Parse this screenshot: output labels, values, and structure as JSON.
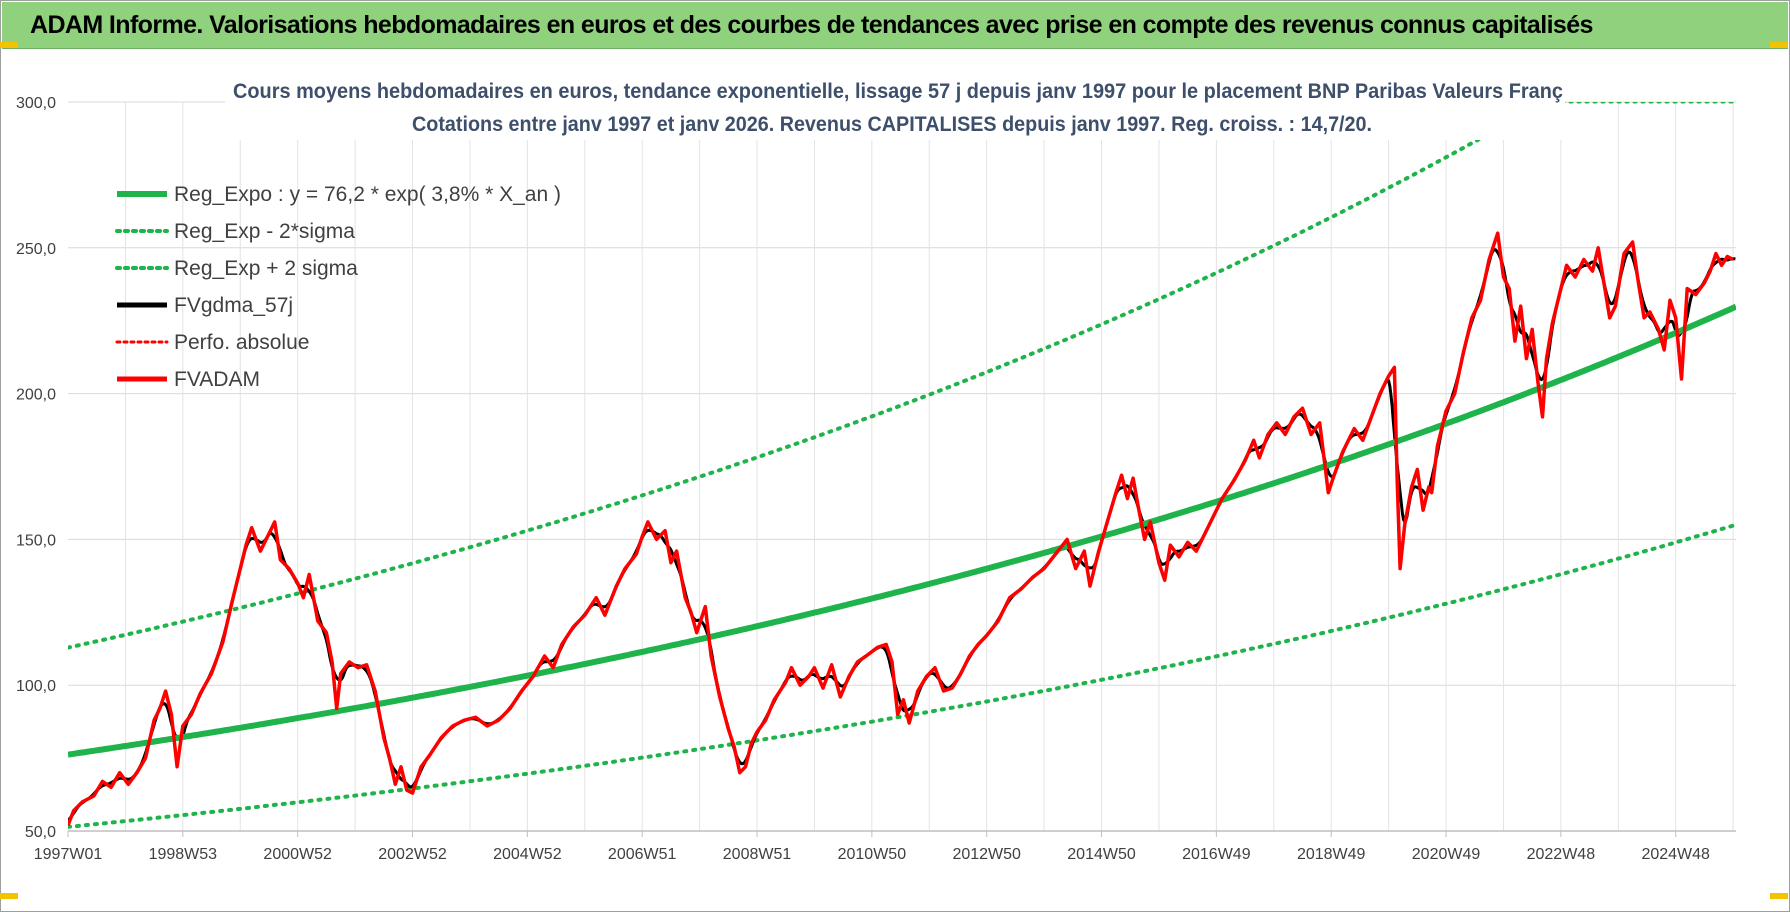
{
  "banner": {
    "title": "ADAM Informe. Valorisations hebdomadaires en euros et des courbes de tendances avec prise en compte des revenus connus capitalisés"
  },
  "colors": {
    "banner": "#8fd17c",
    "trend": "#1fb34b",
    "smoothed": "#000000",
    "price": "#ff0000",
    "grid": "#d9d9d9",
    "title": "#3d4f6b"
  },
  "chart_data": {
    "type": "line",
    "title_lines": [
      "Cours moyens hebdomadaires en euros, tendance exponentielle, lissage 57 j depuis janv 1997  pour le placement BNP Paribas Valeurs Franç",
      "Cotations entre janv 1997 et janv 2026. Revenus CAPITALISES depuis janv 1997. Reg. croiss. : 14,7/20."
    ],
    "xlabel": "",
    "ylabel": "",
    "x_range": [
      1997.0,
      2026.05
    ],
    "ylim": [
      50,
      300
    ],
    "y_ticks": [
      "50,0",
      "100,0",
      "150,0",
      "200,0",
      "250,0",
      "300,0"
    ],
    "x_ticks": [
      {
        "label": "1997W01",
        "x": 1997.0
      },
      {
        "label": "1998W53",
        "x": 1999.0
      },
      {
        "label": "2000W52",
        "x": 2001.0
      },
      {
        "label": "2002W52",
        "x": 2003.0
      },
      {
        "label": "2004W52",
        "x": 2005.0
      },
      {
        "label": "2006W51",
        "x": 2007.0
      },
      {
        "label": "2008W51",
        "x": 2009.0
      },
      {
        "label": "2010W50",
        "x": 2011.0
      },
      {
        "label": "2012W50",
        "x": 2013.0
      },
      {
        "label": "2014W50",
        "x": 2015.0
      },
      {
        "label": "2016W49",
        "x": 2017.0
      },
      {
        "label": "2018W49",
        "x": 2019.0
      },
      {
        "label": "2020W49",
        "x": 2021.0
      },
      {
        "label": "2022W48",
        "x": 2023.0
      },
      {
        "label": "2024W48",
        "x": 2025.0
      }
    ],
    "grid": true,
    "legend_position": "top-left",
    "series": [
      {
        "name": "Reg_Expo : y = 76,2 * exp( 3,8% *  X_an )",
        "style": "solid",
        "color": "#1fb34b",
        "formula": {
          "a": 76.2,
          "rate": 0.038,
          "start": 1997.0
        }
      },
      {
        "name": "Reg_Exp - 2*sigma",
        "style": "dotted",
        "color": "#1fb34b",
        "formula": {
          "a": 51.4,
          "rate": 0.038,
          "start": 1997.0
        }
      },
      {
        "name": "Reg_Exp + 2 sigma",
        "style": "dotted",
        "color": "#1fb34b",
        "formula": {
          "a": 112.9,
          "rate": 0.038,
          "start": 1997.0
        }
      },
      {
        "name": "FVgdma_57j",
        "style": "solid",
        "color": "#000000"
      },
      {
        "name": "Perfo. absolue",
        "style": "dotted",
        "color": "#ff0000"
      },
      {
        "name": "FVADAM",
        "style": "solid",
        "color": "#ff0000",
        "points": [
          [
            1997.0,
            52
          ],
          [
            1997.1,
            57
          ],
          [
            1997.25,
            60
          ],
          [
            1997.45,
            62
          ],
          [
            1997.6,
            67
          ],
          [
            1997.75,
            65
          ],
          [
            1997.9,
            70
          ],
          [
            1998.05,
            66
          ],
          [
            1998.2,
            70
          ],
          [
            1998.35,
            75
          ],
          [
            1998.5,
            88
          ],
          [
            1998.6,
            92
          ],
          [
            1998.7,
            98
          ],
          [
            1998.8,
            90
          ],
          [
            1998.9,
            72
          ],
          [
            1999.0,
            86
          ],
          [
            1999.15,
            90
          ],
          [
            1999.3,
            97
          ],
          [
            1999.5,
            104
          ],
          [
            1999.7,
            115
          ],
          [
            1999.85,
            128
          ],
          [
            2000.0,
            140
          ],
          [
            2000.1,
            148
          ],
          [
            2000.2,
            154
          ],
          [
            2000.35,
            146
          ],
          [
            2000.5,
            152
          ],
          [
            2000.6,
            156
          ],
          [
            2000.7,
            143
          ],
          [
            2000.85,
            140
          ],
          [
            2001.0,
            135
          ],
          [
            2001.1,
            130
          ],
          [
            2001.2,
            138
          ],
          [
            2001.35,
            122
          ],
          [
            2001.5,
            118
          ],
          [
            2001.6,
            108
          ],
          [
            2001.68,
            92
          ],
          [
            2001.75,
            104
          ],
          [
            2001.9,
            108
          ],
          [
            2002.05,
            106
          ],
          [
            2002.2,
            107
          ],
          [
            2002.35,
            98
          ],
          [
            2002.5,
            82
          ],
          [
            2002.6,
            75
          ],
          [
            2002.7,
            66
          ],
          [
            2002.8,
            72
          ],
          [
            2002.9,
            64
          ],
          [
            2003.0,
            63
          ],
          [
            2003.15,
            72
          ],
          [
            2003.3,
            76
          ],
          [
            2003.5,
            82
          ],
          [
            2003.7,
            86
          ],
          [
            2003.9,
            88
          ],
          [
            2004.1,
            89
          ],
          [
            2004.3,
            86
          ],
          [
            2004.5,
            88
          ],
          [
            2004.7,
            92
          ],
          [
            2004.9,
            98
          ],
          [
            2005.1,
            103
          ],
          [
            2005.3,
            110
          ],
          [
            2005.45,
            106
          ],
          [
            2005.6,
            114
          ],
          [
            2005.8,
            120
          ],
          [
            2006.0,
            124
          ],
          [
            2006.2,
            130
          ],
          [
            2006.35,
            124
          ],
          [
            2006.55,
            134
          ],
          [
            2006.7,
            140
          ],
          [
            2006.9,
            145
          ],
          [
            2007.0,
            151
          ],
          [
            2007.1,
            156
          ],
          [
            2007.25,
            150
          ],
          [
            2007.4,
            153
          ],
          [
            2007.5,
            142
          ],
          [
            2007.6,
            146
          ],
          [
            2007.75,
            130
          ],
          [
            2007.85,
            125
          ],
          [
            2007.95,
            118
          ],
          [
            2008.1,
            127
          ],
          [
            2008.2,
            110
          ],
          [
            2008.35,
            96
          ],
          [
            2008.5,
            85
          ],
          [
            2008.6,
            79
          ],
          [
            2008.7,
            70
          ],
          [
            2008.8,
            72
          ],
          [
            2008.9,
            80
          ],
          [
            2009.0,
            84
          ],
          [
            2009.15,
            88
          ],
          [
            2009.3,
            95
          ],
          [
            2009.5,
            101
          ],
          [
            2009.6,
            106
          ],
          [
            2009.75,
            100
          ],
          [
            2009.9,
            103
          ],
          [
            2010.0,
            106
          ],
          [
            2010.15,
            99
          ],
          [
            2010.3,
            107
          ],
          [
            2010.45,
            96
          ],
          [
            2010.6,
            103
          ],
          [
            2010.75,
            108
          ],
          [
            2010.9,
            110
          ],
          [
            2011.1,
            113
          ],
          [
            2011.25,
            114
          ],
          [
            2011.35,
            108
          ],
          [
            2011.45,
            90
          ],
          [
            2011.55,
            95
          ],
          [
            2011.65,
            87
          ],
          [
            2011.8,
            98
          ],
          [
            2011.95,
            103
          ],
          [
            2012.1,
            106
          ],
          [
            2012.25,
            98
          ],
          [
            2012.4,
            99
          ],
          [
            2012.55,
            104
          ],
          [
            2012.7,
            110
          ],
          [
            2012.85,
            114
          ],
          [
            2013.0,
            117
          ],
          [
            2013.2,
            122
          ],
          [
            2013.4,
            130
          ],
          [
            2013.6,
            133
          ],
          [
            2013.8,
            137
          ],
          [
            2014.0,
            140
          ],
          [
            2014.2,
            145
          ],
          [
            2014.4,
            150
          ],
          [
            2014.55,
            140
          ],
          [
            2014.7,
            146
          ],
          [
            2014.8,
            134
          ],
          [
            2014.95,
            146
          ],
          [
            2015.1,
            156
          ],
          [
            2015.25,
            166
          ],
          [
            2015.35,
            172
          ],
          [
            2015.45,
            164
          ],
          [
            2015.55,
            171
          ],
          [
            2015.65,
            160
          ],
          [
            2015.75,
            150
          ],
          [
            2015.85,
            156
          ],
          [
            2016.0,
            142
          ],
          [
            2016.1,
            136
          ],
          [
            2016.2,
            148
          ],
          [
            2016.35,
            144
          ],
          [
            2016.5,
            149
          ],
          [
            2016.65,
            146
          ],
          [
            2016.8,
            152
          ],
          [
            2016.95,
            158
          ],
          [
            2017.1,
            164
          ],
          [
            2017.3,
            170
          ],
          [
            2017.5,
            177
          ],
          [
            2017.65,
            184
          ],
          [
            2017.75,
            178
          ],
          [
            2017.9,
            186
          ],
          [
            2018.05,
            190
          ],
          [
            2018.2,
            186
          ],
          [
            2018.35,
            192
          ],
          [
            2018.5,
            195
          ],
          [
            2018.65,
            186
          ],
          [
            2018.8,
            190
          ],
          [
            2018.95,
            166
          ],
          [
            2019.05,
            172
          ],
          [
            2019.2,
            180
          ],
          [
            2019.4,
            188
          ],
          [
            2019.55,
            184
          ],
          [
            2019.7,
            192
          ],
          [
            2019.85,
            200
          ],
          [
            2020.0,
            206
          ],
          [
            2020.1,
            209
          ],
          [
            2020.15,
            170
          ],
          [
            2020.2,
            140
          ],
          [
            2020.28,
            155
          ],
          [
            2020.4,
            168
          ],
          [
            2020.5,
            174
          ],
          [
            2020.6,
            160
          ],
          [
            2020.7,
            168
          ],
          [
            2020.75,
            166
          ],
          [
            2020.85,
            182
          ],
          [
            2021.0,
            194
          ],
          [
            2021.15,
            200
          ],
          [
            2021.3,
            214
          ],
          [
            2021.45,
            226
          ],
          [
            2021.6,
            232
          ],
          [
            2021.75,
            246
          ],
          [
            2021.85,
            252
          ],
          [
            2021.9,
            255
          ],
          [
            2022.0,
            240
          ],
          [
            2022.1,
            236
          ],
          [
            2022.2,
            218
          ],
          [
            2022.3,
            230
          ],
          [
            2022.4,
            212
          ],
          [
            2022.5,
            222
          ],
          [
            2022.6,
            204
          ],
          [
            2022.68,
            192
          ],
          [
            2022.75,
            212
          ],
          [
            2022.85,
            224
          ],
          [
            2023.0,
            236
          ],
          [
            2023.1,
            244
          ],
          [
            2023.25,
            240
          ],
          [
            2023.4,
            246
          ],
          [
            2023.55,
            242
          ],
          [
            2023.65,
            250
          ],
          [
            2023.75,
            238
          ],
          [
            2023.85,
            226
          ],
          [
            2023.95,
            230
          ],
          [
            2024.1,
            248
          ],
          [
            2024.25,
            252
          ],
          [
            2024.35,
            238
          ],
          [
            2024.45,
            226
          ],
          [
            2024.55,
            228
          ],
          [
            2024.7,
            222
          ],
          [
            2024.8,
            215
          ],
          [
            2024.9,
            232
          ],
          [
            2025.0,
            226
          ],
          [
            2025.1,
            205
          ],
          [
            2025.2,
            236
          ],
          [
            2025.35,
            234
          ],
          [
            2025.5,
            238
          ],
          [
            2025.6,
            242
          ],
          [
            2025.7,
            248
          ],
          [
            2025.8,
            244
          ],
          [
            2025.9,
            247
          ],
          [
            2026.0,
            246
          ]
        ]
      }
    ]
  }
}
